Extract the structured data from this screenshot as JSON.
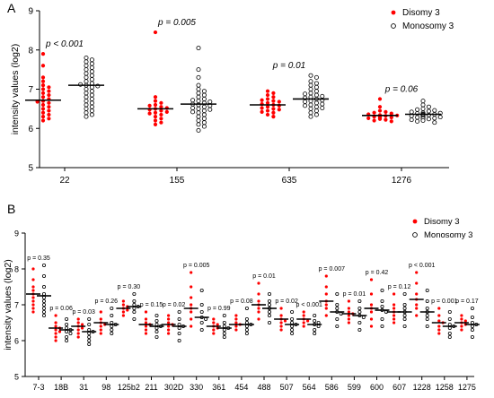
{
  "colors": {
    "disomy": "#ff0000",
    "monosomy": "#000000",
    "axis": "#000000"
  },
  "chart_data": [
    {
      "type": "scatter",
      "panel": "A",
      "ylabel": "intensity values (log2)",
      "ylim": [
        5,
        9
      ],
      "yticks": [
        5,
        6,
        7,
        8,
        9
      ],
      "legend": [
        "Disomy 3",
        "Monosomy 3"
      ],
      "legend_position": "top-right",
      "categories": [
        "22",
        "155",
        "635",
        "1276"
      ],
      "pvalues": [
        "p < 0.001",
        "p = 0.005",
        "p = 0.01",
        "p = 0.06"
      ],
      "series": [
        {
          "name": "Disomy 3",
          "marker": "filled",
          "medians": [
            6.72,
            6.5,
            6.6,
            6.33
          ],
          "values": [
            [
              7.9,
              7.6,
              7.3,
              7.2,
              7.1,
              7.05,
              7.0,
              6.95,
              6.9,
              6.85,
              6.8,
              6.75,
              6.7,
              6.68,
              6.65,
              6.6,
              6.55,
              6.5,
              6.45,
              6.4,
              6.35,
              6.3,
              6.25,
              6.2
            ],
            [
              8.45,
              6.8,
              6.7,
              6.65,
              6.6,
              6.58,
              6.55,
              6.52,
              6.5,
              6.48,
              6.45,
              6.42,
              6.4,
              6.38,
              6.35,
              6.3,
              6.25,
              6.2,
              6.15,
              6.1
            ],
            [
              6.95,
              6.9,
              6.85,
              6.8,
              6.75,
              6.72,
              6.7,
              6.68,
              6.65,
              6.62,
              6.6,
              6.58,
              6.55,
              6.52,
              6.5,
              6.48,
              6.45,
              6.42,
              6.4,
              6.35,
              6.3
            ],
            [
              6.75,
              6.55,
              6.45,
              6.42,
              6.4,
              6.38,
              6.36,
              6.34,
              6.33,
              6.32,
              6.3,
              6.3,
              6.29,
              6.28,
              6.27,
              6.26,
              6.25,
              6.24,
              6.22,
              6.2,
              6.18
            ]
          ]
        },
        {
          "name": "Monosomy 3",
          "marker": "open",
          "medians": [
            7.1,
            6.62,
            6.75,
            6.36
          ],
          "values": [
            [
              7.8,
              7.75,
              7.7,
              7.65,
              7.6,
              7.55,
              7.5,
              7.45,
              7.4,
              7.35,
              7.3,
              7.25,
              7.2,
              7.15,
              7.12,
              7.1,
              7.08,
              7.05,
              7.0,
              6.95,
              6.9,
              6.85,
              6.8,
              6.75,
              6.7,
              6.65,
              6.6,
              6.55,
              6.5,
              6.45,
              6.4,
              6.35,
              6.3
            ],
            [
              8.05,
              7.5,
              7.3,
              7.1,
              7.0,
              6.95,
              6.9,
              6.85,
              6.8,
              6.75,
              6.72,
              6.7,
              6.68,
              6.65,
              6.62,
              6.6,
              6.58,
              6.55,
              6.52,
              6.5,
              6.48,
              6.45,
              6.42,
              6.4,
              6.35,
              6.3,
              6.25,
              6.2,
              6.15,
              6.1,
              6.05,
              5.95
            ],
            [
              7.35,
              7.3,
              7.2,
              7.15,
              7.1,
              7.05,
              7.0,
              6.95,
              6.9,
              6.88,
              6.85,
              6.82,
              6.8,
              6.78,
              6.75,
              6.72,
              6.7,
              6.68,
              6.65,
              6.62,
              6.6,
              6.58,
              6.55,
              6.52,
              6.5,
              6.45,
              6.4,
              6.35,
              6.3
            ],
            [
              6.7,
              6.6,
              6.55,
              6.5,
              6.48,
              6.46,
              6.44,
              6.42,
              6.4,
              6.39,
              6.38,
              6.37,
              6.36,
              6.35,
              6.34,
              6.33,
              6.32,
              6.31,
              6.3,
              6.29,
              6.28,
              6.27,
              6.26,
              6.25,
              6.24,
              6.22,
              6.2,
              6.18,
              6.15
            ]
          ]
        }
      ]
    },
    {
      "type": "scatter",
      "panel": "B",
      "ylabel": "intensity values (log2)",
      "ylim": [
        5,
        9
      ],
      "yticks": [
        5,
        6,
        7,
        8,
        9
      ],
      "legend": [
        "Disomy 3",
        "Monosomy 3"
      ],
      "legend_position": "top-right",
      "categories": [
        "7-3",
        "18B",
        "31",
        "98",
        "125b2",
        "211",
        "302D",
        "330",
        "361",
        "454",
        "488",
        "507",
        "564",
        "586",
        "599",
        "600",
        "607",
        "1228",
        "1258",
        "1275"
      ],
      "pvalues": [
        "p = 0.35",
        "p = 0.06",
        "p = 0.03",
        "p = 0.26",
        "p = 0.30",
        "p = 0.15",
        "p = 0.02",
        "p = 0.005",
        "p = 0.99",
        "p = 0.08",
        "p = 0.01",
        "p = 0.02",
        "p < 0.001",
        "p = 0.007",
        "p = 0.01",
        "p = 0.42",
        "p = 0.12",
        "p < 0.001",
        "p = 0.001",
        "p = 0.17"
      ],
      "series": [
        {
          "name": "Disomy 3",
          "marker": "filled",
          "medians": [
            7.3,
            6.35,
            6.4,
            6.5,
            6.9,
            6.45,
            6.45,
            6.9,
            6.4,
            6.45,
            7.0,
            6.6,
            6.6,
            7.1,
            6.75,
            6.9,
            6.8,
            7.15,
            6.5,
            6.5
          ],
          "values": [
            [
              8.0,
              7.7,
              7.5,
              7.4,
              7.3,
              7.2,
              7.1,
              7.0,
              6.9,
              6.8
            ],
            [
              6.7,
              6.5,
              6.4,
              6.35,
              6.3,
              6.25,
              6.2,
              6.1,
              6.0
            ],
            [
              6.6,
              6.5,
              6.45,
              6.4,
              6.35,
              6.3,
              6.2,
              6.1
            ],
            [
              6.8,
              6.6,
              6.5,
              6.45,
              6.4,
              6.3,
              6.2
            ],
            [
              7.1,
              7.0,
              6.95,
              6.9,
              6.85,
              6.8,
              6.7
            ],
            [
              6.8,
              6.6,
              6.5,
              6.45,
              6.4,
              6.3,
              6.2
            ],
            [
              6.7,
              6.6,
              6.5,
              6.45,
              6.4,
              6.3,
              6.2
            ],
            [
              7.9,
              7.5,
              7.2,
              7.0,
              6.9,
              6.8,
              6.6,
              6.4
            ],
            [
              6.6,
              6.5,
              6.45,
              6.4,
              6.35,
              6.3,
              6.2
            ],
            [
              6.7,
              6.6,
              6.5,
              6.45,
              6.4,
              6.3
            ],
            [
              7.6,
              7.3,
              7.1,
              7.0,
              6.9,
              6.8,
              6.6
            ],
            [
              6.9,
              6.7,
              6.6,
              6.55,
              6.5,
              6.4,
              6.3
            ],
            [
              6.8,
              6.7,
              6.6,
              6.55,
              6.5,
              6.4
            ],
            [
              7.8,
              7.5,
              7.3,
              7.1,
              7.0,
              6.9,
              6.7
            ],
            [
              7.1,
              6.9,
              6.8,
              6.75,
              6.7,
              6.6,
              6.5
            ],
            [
              7.7,
              7.3,
              7.0,
              6.9,
              6.8,
              6.6,
              6.4
            ],
            [
              7.3,
              7.0,
              6.9,
              6.8,
              6.7,
              6.6,
              6.5
            ],
            [
              7.9,
              7.6,
              7.3,
              7.15,
              7.0,
              6.9,
              6.7
            ],
            [
              6.9,
              6.7,
              6.55,
              6.5,
              6.4,
              6.3,
              6.2
            ],
            [
              6.7,
              6.6,
              6.55,
              6.5,
              6.45,
              6.4,
              6.3
            ]
          ]
        },
        {
          "name": "Monosomy 3",
          "marker": "open",
          "medians": [
            7.25,
            6.3,
            6.25,
            6.45,
            6.95,
            6.4,
            6.4,
            6.65,
            6.35,
            6.45,
            6.9,
            6.45,
            6.45,
            6.8,
            6.7,
            6.85,
            6.8,
            6.8,
            6.4,
            6.45
          ],
          "values": [
            [
              8.1,
              7.8,
              7.5,
              7.3,
              7.2,
              7.1,
              7.0,
              6.9,
              6.8,
              6.7
            ],
            [
              6.6,
              6.45,
              6.35,
              6.3,
              6.25,
              6.2,
              6.1,
              6.0
            ],
            [
              6.6,
              6.45,
              6.3,
              6.25,
              6.2,
              6.1,
              6.0,
              5.9
            ],
            [
              6.9,
              6.7,
              6.5,
              6.45,
              6.4,
              6.3,
              6.2
            ],
            [
              7.3,
              7.1,
              7.0,
              6.95,
              6.9,
              6.8,
              6.6
            ],
            [
              6.7,
              6.55,
              6.45,
              6.4,
              6.35,
              6.25,
              6.1
            ],
            [
              6.8,
              6.6,
              6.45,
              6.4,
              6.35,
              6.2,
              6.0
            ],
            [
              7.4,
              7.0,
              6.8,
              6.65,
              6.6,
              6.5,
              6.3
            ],
            [
              6.7,
              6.5,
              6.4,
              6.35,
              6.3,
              6.2,
              6.1
            ],
            [
              6.9,
              6.6,
              6.5,
              6.45,
              6.4,
              6.3,
              6.2
            ],
            [
              7.3,
              7.1,
              7.0,
              6.9,
              6.8,
              6.7,
              6.5
            ],
            [
              6.8,
              6.6,
              6.5,
              6.45,
              6.4,
              6.3,
              6.2
            ],
            [
              6.7,
              6.55,
              6.5,
              6.45,
              6.4,
              6.3,
              6.2
            ],
            [
              7.3,
              7.0,
              6.9,
              6.8,
              6.75,
              6.6,
              6.4
            ],
            [
              7.1,
              6.9,
              6.8,
              6.7,
              6.65,
              6.5,
              6.3
            ],
            [
              7.4,
              7.1,
              6.95,
              6.85,
              6.8,
              6.6,
              6.4
            ],
            [
              7.3,
              7.0,
              6.9,
              6.8,
              6.7,
              6.6,
              6.4
            ],
            [
              7.4,
              7.1,
              6.9,
              6.8,
              6.7,
              6.6,
              6.4
            ],
            [
              6.8,
              6.6,
              6.45,
              6.4,
              6.35,
              6.2,
              6.1
            ],
            [
              6.9,
              6.65,
              6.5,
              6.45,
              6.4,
              6.3,
              6.1
            ]
          ]
        }
      ]
    }
  ]
}
